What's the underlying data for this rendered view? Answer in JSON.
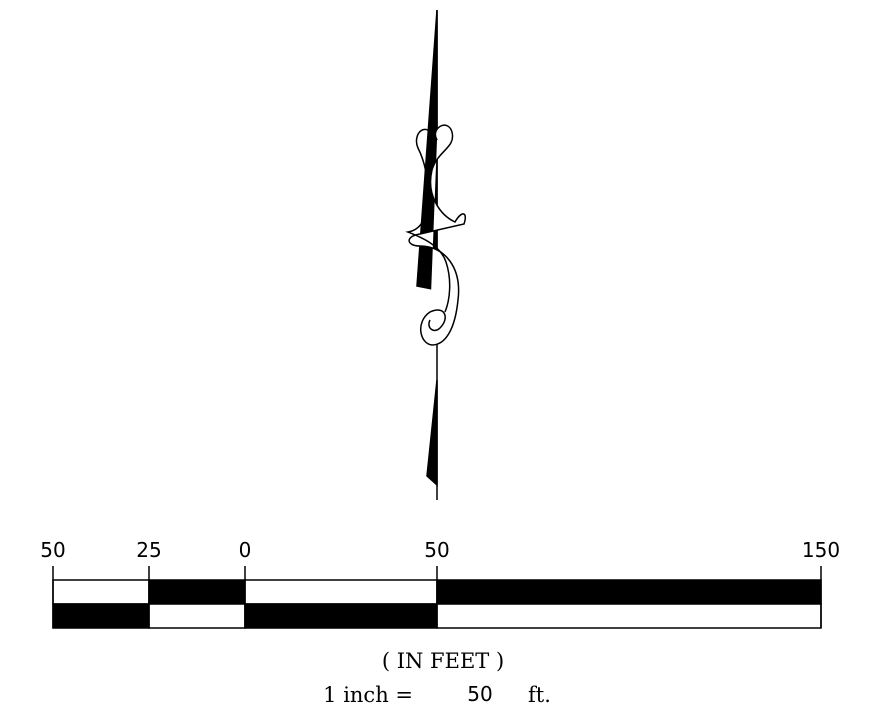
{
  "scale_bar": {
    "labels": [
      "50",
      "25",
      "0",
      "50",
      "150"
    ],
    "units": "( IN FEET )",
    "scale_prefix": "1 inch =",
    "scale_value": "50",
    "scale_suffix": "ft."
  }
}
